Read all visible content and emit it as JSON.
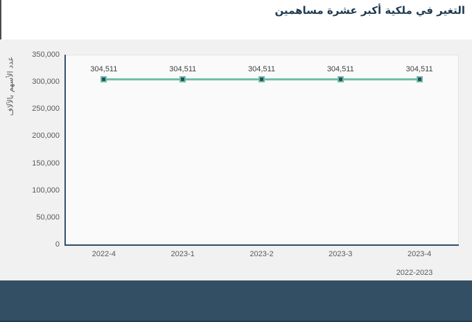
{
  "header": {
    "title": "التغير في ملكية أكبر عشرة مساهمين"
  },
  "colors": {
    "title_navy": "#1f3a52",
    "axis_navy": "#33506a",
    "line_teal": "#6dbfa3",
    "marker_navy": "#2e4a63",
    "container_gray": "#f1f1f1",
    "plot_bg": "#fafafa",
    "footer_navy": "#334f63",
    "tick_text": "#595959",
    "label_text": "#3f3f3f"
  },
  "chart_data": {
    "type": "line",
    "title": "التغير في ملكية أكبر عشرة مساهمين",
    "categories": [
      "2022-4",
      "2023-1",
      "2023-2",
      "2023-3",
      "2023-4"
    ],
    "series": [
      {
        "name": "عدد الأسهم",
        "values": [
          304511,
          304511,
          304511,
          304511,
          304511
        ]
      }
    ],
    "point_labels": [
      "304,511",
      "304,511",
      "304,511",
      "304,511",
      "304,511"
    ],
    "xlabel": "2022-2023",
    "ylabel": "عدد الأسهم بالآلاف",
    "ylim": [
      0,
      350000
    ],
    "yticks": [
      0,
      50000,
      100000,
      150000,
      200000,
      250000,
      300000,
      350000
    ],
    "ytick_labels": [
      "0",
      "50,000",
      "100,000",
      "150,000",
      "200,000",
      "250,000",
      "300,000",
      "350,000"
    ],
    "grid": false,
    "legend": "none"
  }
}
